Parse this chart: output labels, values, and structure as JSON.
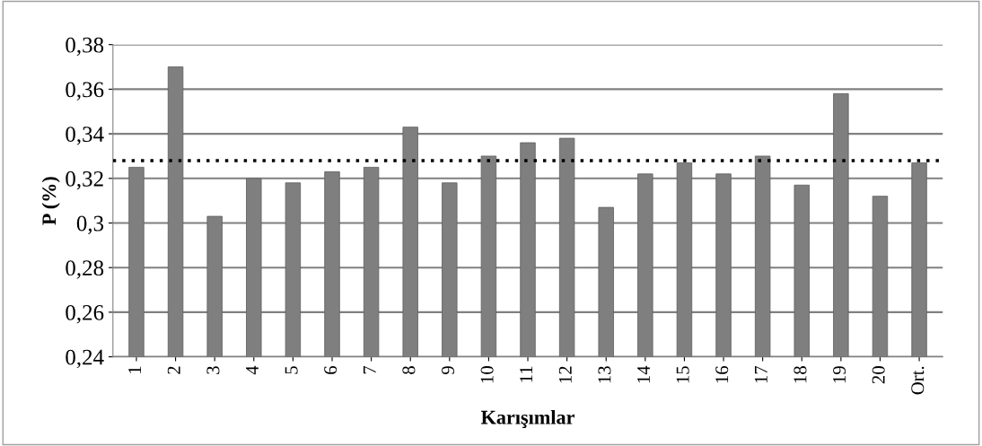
{
  "chart_data": {
    "type": "bar",
    "xlabel": "Karışımlar",
    "ylabel": "P (%)",
    "categories": [
      "1",
      "2",
      "3",
      "4",
      "5",
      "6",
      "7",
      "8",
      "9",
      "10",
      "11",
      "12",
      "13",
      "14",
      "15",
      "16",
      "17",
      "18",
      "19",
      "20",
      "Ort."
    ],
    "values": [
      0.325,
      0.37,
      0.303,
      0.32,
      0.318,
      0.323,
      0.325,
      0.343,
      0.318,
      0.33,
      0.336,
      0.338,
      0.307,
      0.322,
      0.327,
      0.322,
      0.33,
      0.317,
      0.358,
      0.312,
      0.327
    ],
    "color": "#7f7f7f",
    "ylim": [
      0.24,
      0.38
    ],
    "yticks": [
      {
        "value": 0.24,
        "label": "0,24"
      },
      {
        "value": 0.26,
        "label": "0,26"
      },
      {
        "value": 0.28,
        "label": "0,28"
      },
      {
        "value": 0.3,
        "label": "0,3"
      },
      {
        "value": 0.32,
        "label": "0,32"
      },
      {
        "value": 0.34,
        "label": "0,34"
      },
      {
        "value": 0.36,
        "label": "0,36"
      },
      {
        "value": 0.38,
        "label": "0,38"
      }
    ],
    "grid": "y",
    "ref_lines": [
      {
        "axis": "y",
        "value": 0.328,
        "color": "#000000",
        "line_style": "dotted"
      }
    ]
  }
}
